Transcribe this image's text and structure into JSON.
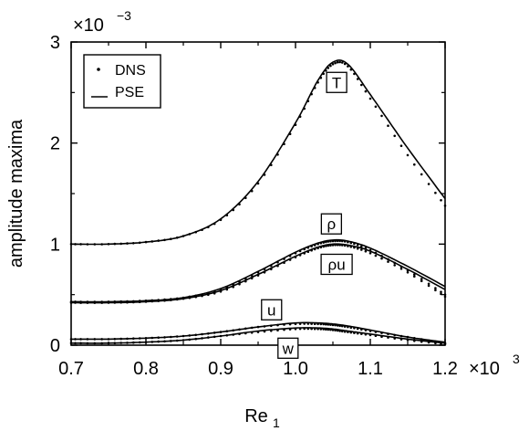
{
  "chart_data": {
    "type": "line",
    "xlabel": "Re",
    "xlabel_sub": "1",
    "ylabel": "amplitude maxima",
    "x_multiplier": "×10",
    "x_multiplier_exp": "3",
    "y_multiplier": "×10",
    "y_multiplier_exp": "−3",
    "xlim": [
      0.7,
      1.2
    ],
    "ylim": [
      0,
      3
    ],
    "xticks": [
      0.7,
      0.8,
      0.9,
      1.0,
      1.1,
      1.2
    ],
    "xtick_labels": [
      "0.7",
      "0.8",
      "0.9",
      "1.0",
      "1.1",
      "1.2"
    ],
    "yticks": [
      0,
      1,
      2,
      3
    ],
    "ytick_labels": [
      "0",
      "1",
      "2",
      "3"
    ],
    "grid": false,
    "legend": {
      "placement": "top-left",
      "entries": [
        {
          "marker": "dot",
          "label": "DNS"
        },
        {
          "marker": "line",
          "label": "PSE"
        }
      ]
    },
    "x": [
      0.7,
      0.75,
      0.8,
      0.85,
      0.9,
      0.95,
      1.0,
      1.03,
      1.05,
      1.07,
      1.1,
      1.15,
      1.2
    ],
    "series": [
      {
        "name": "T",
        "pse": [
          1.0,
          1.0,
          1.02,
          1.08,
          1.25,
          1.62,
          2.2,
          2.62,
          2.8,
          2.78,
          2.48,
          1.95,
          1.45
        ],
        "dns": [
          1.0,
          1.0,
          1.02,
          1.08,
          1.24,
          1.6,
          2.18,
          2.6,
          2.78,
          2.76,
          2.44,
          1.88,
          1.38
        ]
      },
      {
        "name": "ρ",
        "pse": [
          0.43,
          0.43,
          0.44,
          0.47,
          0.56,
          0.73,
          0.92,
          1.01,
          1.04,
          1.03,
          0.96,
          0.78,
          0.58
        ],
        "dns": [
          0.43,
          0.43,
          0.44,
          0.47,
          0.55,
          0.72,
          0.91,
          1.0,
          1.03,
          1.02,
          0.94,
          0.74,
          0.5
        ]
      },
      {
        "name": "ρu",
        "pse": [
          0.42,
          0.42,
          0.43,
          0.46,
          0.54,
          0.7,
          0.88,
          0.97,
          1.0,
          0.99,
          0.93,
          0.75,
          0.55
        ],
        "dns": [
          0.42,
          0.42,
          0.43,
          0.46,
          0.53,
          0.69,
          0.87,
          0.96,
          0.99,
          0.98,
          0.91,
          0.72,
          0.48
        ]
      },
      {
        "name": "u",
        "pse": [
          0.06,
          0.06,
          0.07,
          0.09,
          0.13,
          0.18,
          0.22,
          0.22,
          0.21,
          0.19,
          0.15,
          0.08,
          0.03
        ],
        "dns": [
          0.06,
          0.06,
          0.07,
          0.09,
          0.13,
          0.18,
          0.21,
          0.21,
          0.2,
          0.18,
          0.14,
          0.08,
          0.02
        ]
      },
      {
        "name": "w",
        "pse": [
          0.02,
          0.02,
          0.03,
          0.05,
          0.09,
          0.14,
          0.17,
          0.17,
          0.16,
          0.14,
          0.11,
          0.06,
          0.02
        ],
        "dns": [
          0.02,
          0.02,
          0.03,
          0.05,
          0.09,
          0.13,
          0.16,
          0.16,
          0.15,
          0.13,
          0.1,
          0.05,
          0.01
        ]
      }
    ],
    "curve_labels": [
      {
        "text": "T",
        "x": 1.055,
        "y": 2.6
      },
      {
        "text": "ρ",
        "x": 1.048,
        "y": 1.2
      },
      {
        "text": "ρu",
        "x": 1.055,
        "y": 0.8
      },
      {
        "text": "u",
        "x": 0.968,
        "y": 0.35
      },
      {
        "text": "w",
        "x": 0.99,
        "y": -0.03
      }
    ]
  }
}
